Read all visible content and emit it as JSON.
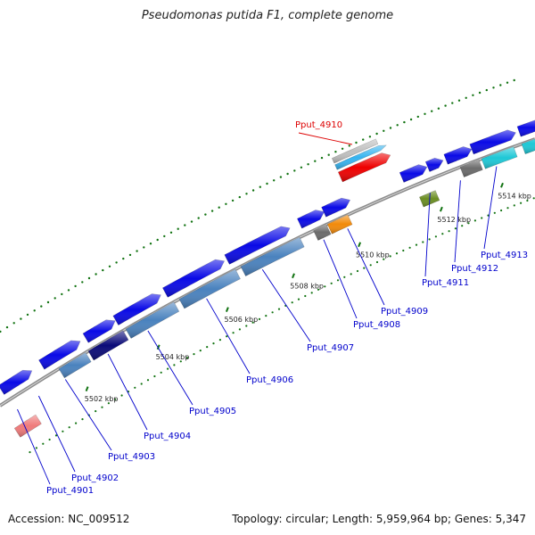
{
  "title": "Pseudomonas putida F1, complete genome",
  "footer": {
    "accession": "Accession: NC_009512",
    "topology": "Topology: circular; Length: 5,959,964 bp; Genes: 5,347"
  },
  "colors": {
    "backbone": "#8c8c8c",
    "tick": "#127312",
    "gene_blue": "#0a0ae6",
    "gene_steel": "#4a82be",
    "gene_navy": "#0a0a78",
    "gene_gray": "#6b6b6b",
    "gene_orange": "#f28a0a",
    "gene_cyan": "#1ec8d6",
    "gene_green": "#6b8e23",
    "gene_pink": "#ef7a7a",
    "gene_red": "#ee0000",
    "gene_lightblue": "#36b4f0",
    "gene_silver": "#c0c0c0",
    "label": "#0000cc",
    "label_highlight": "#dd0000"
  },
  "ticks": [
    {
      "label": "5502 kbp"
    },
    {
      "label": "5504 kbp"
    },
    {
      "label": "5506 kbp"
    },
    {
      "label": "5508 kbp"
    },
    {
      "label": "5510 kbp"
    },
    {
      "label": "5512 kbp"
    },
    {
      "label": "5514 kbp"
    }
  ],
  "genes": [
    {
      "label": "Pput_4901",
      "color": "gene_pink"
    },
    {
      "label": "Pput_4902",
      "color": "gene_blue"
    },
    {
      "label": "Pput_4903",
      "color": "gene_steel"
    },
    {
      "label": "Pput_4904",
      "color": "gene_navy"
    },
    {
      "label": "Pput_4905",
      "color": "gene_steel"
    },
    {
      "label": "Pput_4906",
      "color": "gene_steel"
    },
    {
      "label": "Pput_4907",
      "color": "gene_steel"
    },
    {
      "label": "Pput_4908",
      "color": "gene_gray"
    },
    {
      "label": "Pput_4909",
      "color": "gene_orange"
    },
    {
      "label": "Pput_4910",
      "color": "gene_red",
      "highlight": true
    },
    {
      "label": "Pput_4911",
      "color": "gene_green"
    },
    {
      "label": "Pput_4912",
      "color": "gene_gray"
    },
    {
      "label": "Pput_4913",
      "color": "gene_cyan"
    }
  ]
}
